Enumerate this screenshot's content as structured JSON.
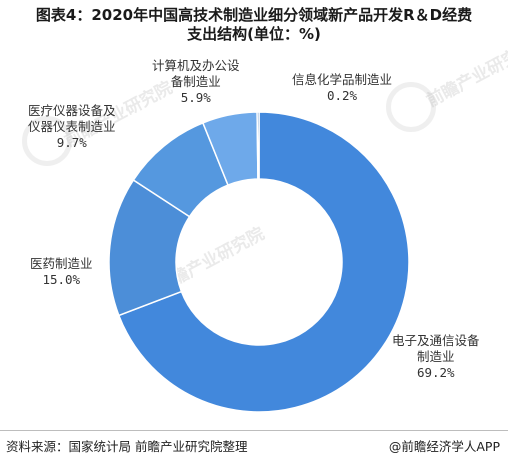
{
  "title": {
    "line1": "图表4：2020年中国高技术制造业细分领域新产品开发R＆D经费",
    "line2": "支出结构(单位：%)"
  },
  "chart_data": {
    "type": "pie",
    "donut": true,
    "categories": [
      "电子及通信设备制造业",
      "医药制造业",
      "医疗仪器设备及仪器仪表制造业",
      "计算机及办公设备制造业",
      "信息化学品制造业"
    ],
    "values": [
      69.2,
      15.0,
      9.7,
      5.9,
      0.2
    ],
    "colors": [
      "#4288dc",
      "#4c8ed8",
      "#5598df",
      "#6ea9ea",
      "#2b6cb3"
    ]
  },
  "labels": [
    {
      "name_lines": [
        "电子及通信设备",
        "制造业"
      ],
      "value": "69.2%"
    },
    {
      "name_lines": [
        "医药制造业"
      ],
      "value": "15.0%"
    },
    {
      "name_lines": [
        "医疗仪器设备及",
        "仪器仪表制造业"
      ],
      "value": "9.7%"
    },
    {
      "name_lines": [
        "计算机及办公设",
        "备制造业"
      ],
      "value": "5.9%"
    },
    {
      "name_lines": [
        "信息化学品制造业"
      ],
      "value": "0.2%"
    }
  ],
  "watermark": "前瞻产业研究院",
  "source": "资料来源：国家统计局 前瞻产业研究院整理",
  "brand": "@前瞻经济学人APP"
}
